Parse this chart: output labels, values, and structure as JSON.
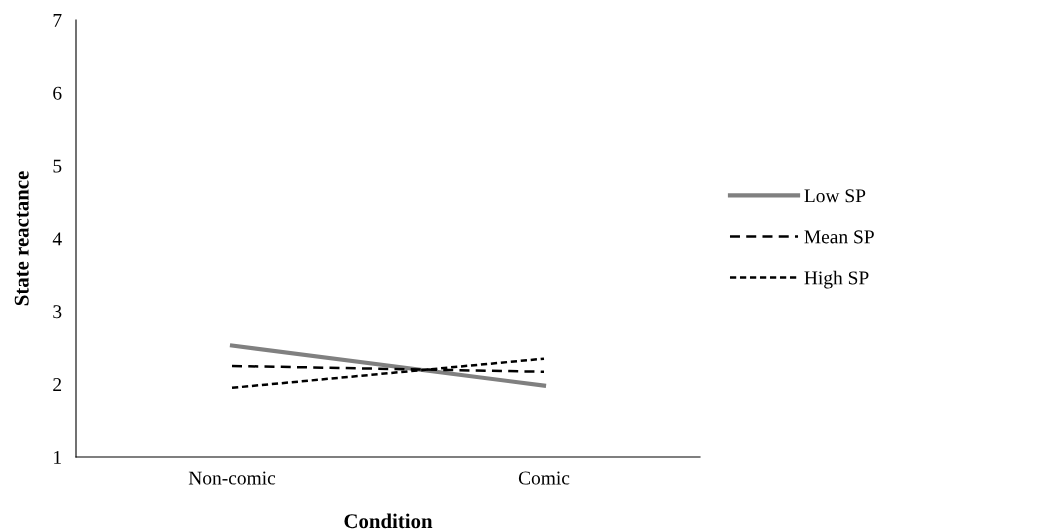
{
  "chart_data": {
    "type": "line",
    "xlabel": "Condition",
    "ylabel": "State reactance",
    "categories": [
      "Non-comic",
      "Comic"
    ],
    "series": [
      {
        "name": "Low SP",
        "color": "#808080",
        "values": [
          2.53,
          1.98
        ],
        "line_style": "solid"
      },
      {
        "name": "Mean SP",
        "color": "#000000",
        "values": [
          2.25,
          2.17
        ],
        "line_style": "dashed"
      },
      {
        "name": "High SP",
        "color": "#000000",
        "values": [
          1.95,
          2.35
        ],
        "line_style": "dotted"
      }
    ],
    "ylim": [
      1,
      7
    ],
    "yticks": [
      1,
      2,
      3,
      4,
      5,
      6,
      7
    ],
    "grid": false,
    "legend": "right",
    "marker": "none"
  }
}
